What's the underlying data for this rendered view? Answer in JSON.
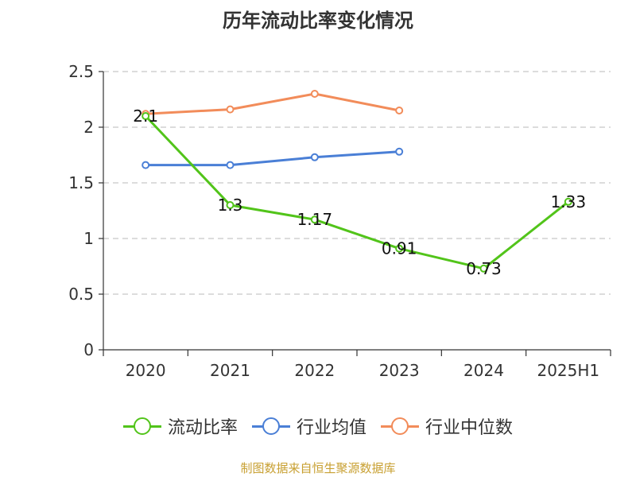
{
  "chart_data": {
    "type": "line",
    "title": "历年流动比率变化情况",
    "categories": [
      "2020",
      "2021",
      "2022",
      "2023",
      "2024",
      "2025H1"
    ],
    "ylim": [
      0,
      2.5
    ],
    "yticks": [
      "0",
      "0.5",
      "1",
      "1.5",
      "2",
      "2.5"
    ],
    "grid": true,
    "legend_position": "bottom",
    "series": [
      {
        "name": "流动比率",
        "color": "#52c41a",
        "values": [
          2.1,
          1.3,
          1.17,
          0.91,
          0.73,
          1.33
        ],
        "labels": [
          "2.1",
          "1.3",
          "1.17",
          "0.91",
          "0.73",
          "1.33"
        ]
      },
      {
        "name": "行业均值",
        "color": "#4a7fd6",
        "values": [
          1.66,
          1.66,
          1.73,
          1.78,
          null,
          null
        ]
      },
      {
        "name": "行业中位数",
        "color": "#f28c5a",
        "values": [
          2.12,
          2.16,
          2.3,
          2.15,
          null,
          null
        ]
      }
    ]
  },
  "source_note": "制图数据来自恒生聚源数据库"
}
